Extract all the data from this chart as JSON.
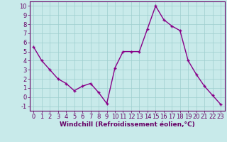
{
  "x": [
    0,
    1,
    2,
    3,
    4,
    5,
    6,
    7,
    8,
    9,
    10,
    11,
    12,
    13,
    14,
    15,
    16,
    17,
    18,
    19,
    20,
    21,
    22,
    23
  ],
  "y": [
    5.5,
    4.0,
    3.0,
    2.0,
    1.5,
    0.7,
    1.2,
    1.5,
    0.5,
    -0.7,
    3.2,
    5.0,
    5.0,
    5.0,
    7.5,
    10.0,
    8.5,
    7.8,
    7.3,
    4.0,
    2.5,
    1.2,
    0.2,
    -0.8
  ],
  "line_color": "#880088",
  "marker": "+",
  "marker_size": 3,
  "line_width": 1.0,
  "bg_color": "#c8eaea",
  "grid_color": "#9ecece",
  "xlabel": "Windchill (Refroidissement éolien,°C)",
  "xlabel_fontsize": 6.5,
  "tick_fontsize": 6.0,
  "ylim": [
    -1.5,
    10.5
  ],
  "xlim": [
    -0.5,
    23.5
  ],
  "yticks": [
    -1,
    0,
    1,
    2,
    3,
    4,
    5,
    6,
    7,
    8,
    9,
    10
  ],
  "xticks": [
    0,
    1,
    2,
    3,
    4,
    5,
    6,
    7,
    8,
    9,
    10,
    11,
    12,
    13,
    14,
    15,
    16,
    17,
    18,
    19,
    20,
    21,
    22,
    23
  ]
}
